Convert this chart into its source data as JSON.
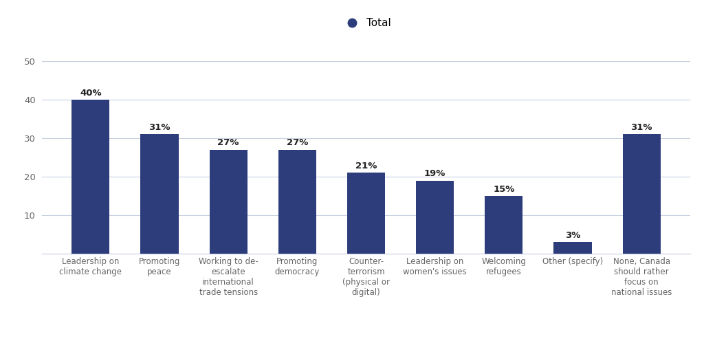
{
  "categories": [
    "Leadership on\nclimate change",
    "Promoting\npeace",
    "Working to de-\nescalate\ninternational\ntrade tensions",
    "Promoting\ndemocracy",
    "Counter-\nterrorism\n(physical or\ndigital)",
    "Leadership on\nwomen's issues",
    "Welcoming\nrefugees",
    "Other (specify)",
    "None, Canada\nshould rather\nfocus on\nnational issues"
  ],
  "values": [
    40,
    31,
    27,
    27,
    21,
    19,
    15,
    3,
    31
  ],
  "bar_color": "#2d3d7c",
  "legend_dot_color": "#2d3d7c",
  "legend_label": "Total",
  "ylim": [
    0,
    55
  ],
  "yticks": [
    0,
    10,
    20,
    30,
    40,
    50
  ],
  "background_color": "#ffffff",
  "bar_width": 0.55,
  "value_label_fontsize": 9.5,
  "tick_label_fontsize": 8.5,
  "grid_color": "#c8cfe0",
  "legend_fontsize": 11,
  "axis_label_color": "#666666",
  "value_label_color": "#222222"
}
